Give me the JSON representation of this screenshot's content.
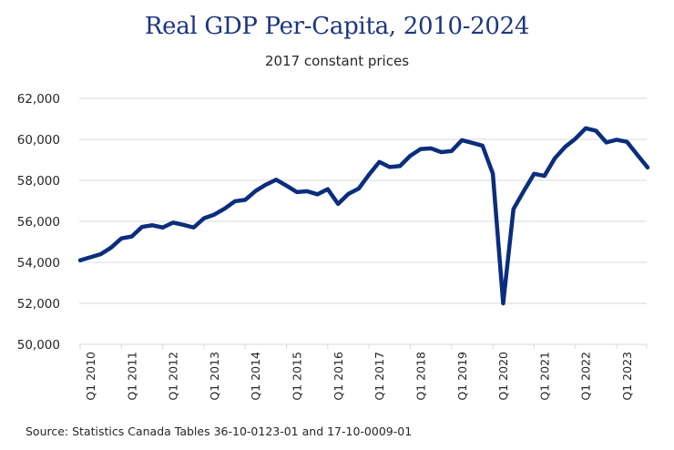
{
  "chart_data": {
    "type": "line",
    "title": "Real GDP Per-Capita, 2010-2024",
    "subtitle": "2017 constant prices",
    "xlabel": "",
    "ylabel": "",
    "source": "Source: Statistics Canada Tables 36-10-0123-01 and 17-10-0009-01",
    "ylim": [
      50000,
      62000
    ],
    "yticks": [
      50000,
      52000,
      54000,
      56000,
      58000,
      60000,
      62000
    ],
    "ytick_labels": [
      "50,000",
      "52,000",
      "54,000",
      "56,000",
      "58,000",
      "60,000",
      "62,000"
    ],
    "grid": true,
    "legend": "none",
    "line_color": "#0b2d7d",
    "x": [
      "Q1 2010",
      "Q2 2010",
      "Q3 2010",
      "Q4 2010",
      "Q1 2011",
      "Q2 2011",
      "Q3 2011",
      "Q4 2011",
      "Q1 2012",
      "Q2 2012",
      "Q3 2012",
      "Q4 2012",
      "Q1 2013",
      "Q2 2013",
      "Q3 2013",
      "Q4 2013",
      "Q1 2014",
      "Q2 2014",
      "Q3 2014",
      "Q4 2014",
      "Q1 2015",
      "Q2 2015",
      "Q3 2015",
      "Q4 2015",
      "Q1 2016",
      "Q2 2016",
      "Q3 2016",
      "Q4 2016",
      "Q1 2017",
      "Q2 2017",
      "Q3 2017",
      "Q4 2017",
      "Q1 2018",
      "Q2 2018",
      "Q3 2018",
      "Q4 2018",
      "Q1 2019",
      "Q2 2019",
      "Q3 2019",
      "Q4 2019",
      "Q1 2020",
      "Q2 2020",
      "Q3 2020",
      "Q4 2020",
      "Q1 2021",
      "Q2 2021",
      "Q3 2021",
      "Q4 2021",
      "Q1 2022",
      "Q2 2022",
      "Q3 2022",
      "Q4 2022",
      "Q1 2023",
      "Q2 2023",
      "Q3 2023",
      "Q4 2023"
    ],
    "xtick_labels": [
      "Q1 2010",
      "Q1 2011",
      "Q1 2012",
      "Q1 2013",
      "Q1 2014",
      "Q1 2015",
      "Q1 2016",
      "Q1 2017",
      "Q1 2018",
      "Q1 2019",
      "Q1 2020",
      "Q1 2021",
      "Q1 2022",
      "Q1 2023"
    ],
    "series": [
      {
        "name": "Real GDP per capita",
        "values": [
          54100,
          54250,
          54400,
          54720,
          55170,
          55260,
          55730,
          55810,
          55700,
          55940,
          55830,
          55700,
          56150,
          56330,
          56620,
          56980,
          57050,
          57480,
          57790,
          58030,
          57740,
          57430,
          57470,
          57320,
          57570,
          56850,
          57340,
          57600,
          58280,
          58900,
          58650,
          58700,
          59200,
          59530,
          59560,
          59380,
          59430,
          59960,
          59830,
          59690,
          58330,
          52000,
          56600,
          57480,
          58320,
          58220,
          59070,
          59630,
          60030,
          60540,
          60420,
          59850,
          59980,
          59880,
          59250,
          58630
        ]
      }
    ]
  }
}
